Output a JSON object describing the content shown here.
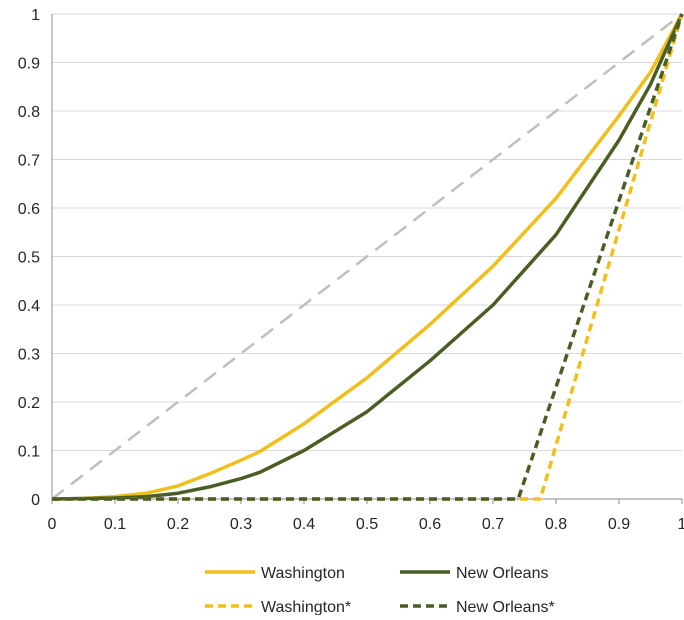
{
  "chart_data": {
    "type": "line",
    "title": "",
    "xlabel": "",
    "ylabel": "",
    "xlim": [
      0,
      1
    ],
    "ylim": [
      0,
      1
    ],
    "x_ticks": [
      "0",
      "0.1",
      "0.2",
      "0.3",
      "0.4",
      "0.5",
      "0.6",
      "0.7",
      "0.8",
      "0.9",
      "1"
    ],
    "y_ticks": [
      "0",
      "0.1",
      "0.2",
      "0.3",
      "0.4",
      "0.5",
      "0.6",
      "0.7",
      "0.8",
      "0.9",
      "1"
    ],
    "grid": "horizontal",
    "legend_position": "bottom",
    "series": [
      {
        "name": "",
        "role": "equality-reference",
        "color": "#BFBFBF",
        "dash": "long-dash",
        "x": [
          0,
          1
        ],
        "y": [
          0,
          1
        ]
      },
      {
        "name": "Washington",
        "color": "#F2BE1A",
        "dash": "solid",
        "x": [
          0,
          0.05,
          0.1,
          0.15,
          0.2,
          0.25,
          0.3,
          0.33,
          0.4,
          0.5,
          0.6,
          0.7,
          0.8,
          0.9,
          0.95,
          1
        ],
        "y": [
          0,
          0.001,
          0.005,
          0.012,
          0.027,
          0.052,
          0.08,
          0.098,
          0.155,
          0.25,
          0.36,
          0.48,
          0.62,
          0.79,
          0.88,
          1
        ]
      },
      {
        "name": "New Orleans",
        "color": "#4A5E23",
        "dash": "solid",
        "x": [
          0,
          0.1,
          0.15,
          0.2,
          0.25,
          0.3,
          0.33,
          0.4,
          0.5,
          0.6,
          0.7,
          0.8,
          0.9,
          0.95,
          1
        ],
        "y": [
          0,
          0.002,
          0.005,
          0.012,
          0.025,
          0.042,
          0.055,
          0.1,
          0.18,
          0.285,
          0.4,
          0.545,
          0.74,
          0.855,
          1
        ]
      },
      {
        "name": "Washington*",
        "color": "#F2BE1A",
        "dash": "short-dash",
        "x": [
          0,
          0.775,
          1
        ],
        "y": [
          0,
          0,
          1
        ]
      },
      {
        "name": "New Orleans*",
        "color": "#4A5E23",
        "dash": "short-dash",
        "x": [
          0,
          0.74,
          1
        ],
        "y": [
          0,
          0,
          1
        ]
      }
    ]
  }
}
